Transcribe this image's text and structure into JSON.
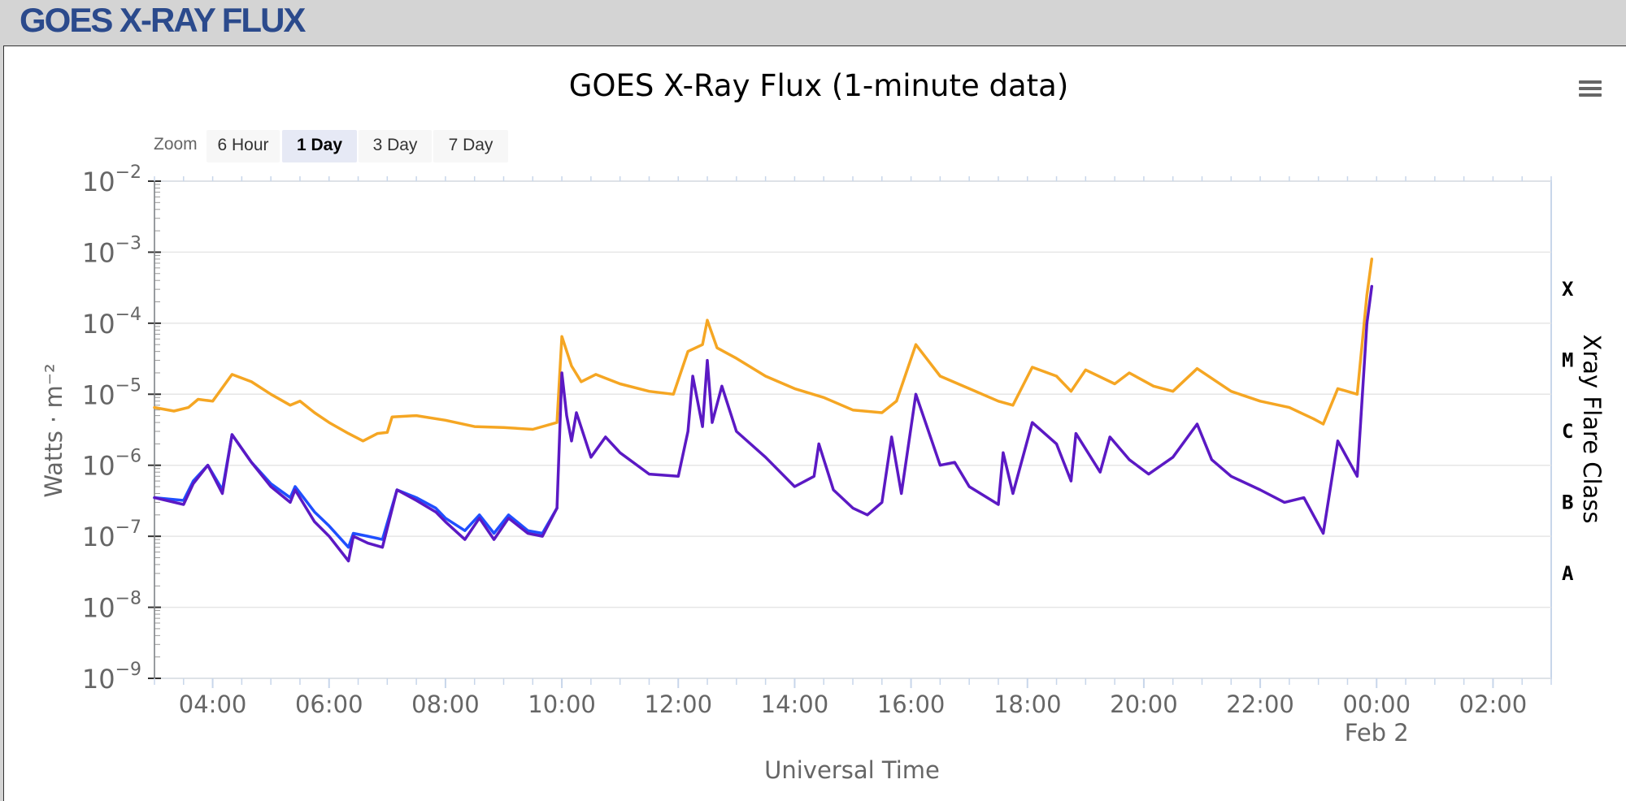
{
  "page": {
    "header_title": "GOES X-RAY FLUX"
  },
  "zoom": {
    "label": "Zoom",
    "buttons": [
      {
        "label": "6 Hour",
        "active": false
      },
      {
        "label": "1 Day",
        "active": true
      },
      {
        "label": "3 Day",
        "active": false
      },
      {
        "label": "7 Day",
        "active": false
      }
    ]
  },
  "menu": {
    "icon": "hamburger-menu-icon"
  },
  "chart_data": {
    "type": "line",
    "title": "GOES X-Ray Flux (1-minute data)",
    "xlabel": "Universal Time",
    "ylabel": "Watts · m⁻²",
    "ylabel_right": "Xray Flare Class",
    "yscale": "log",
    "ylim": [
      1e-09,
      0.01
    ],
    "xlim": [
      "2024-02-01T03:00",
      "2024-02-02T03:00"
    ],
    "y_tick_labels": [
      {
        "value": 0.01,
        "base": "10",
        "exp": "−2"
      },
      {
        "value": 0.001,
        "base": "10",
        "exp": "−3"
      },
      {
        "value": 0.0001,
        "base": "10",
        "exp": "−4"
      },
      {
        "value": 1e-05,
        "base": "10",
        "exp": "−5"
      },
      {
        "value": 1e-06,
        "base": "10",
        "exp": "−6"
      },
      {
        "value": 1e-07,
        "base": "10",
        "exp": "−7"
      },
      {
        "value": 1e-08,
        "base": "10",
        "exp": "−8"
      },
      {
        "value": 1e-09,
        "base": "10",
        "exp": "−9"
      }
    ],
    "x_tick_labels": [
      {
        "t": "2024-02-01T04:00",
        "label": "04:00"
      },
      {
        "t": "2024-02-01T06:00",
        "label": "06:00"
      },
      {
        "t": "2024-02-01T08:00",
        "label": "08:00"
      },
      {
        "t": "2024-02-01T10:00",
        "label": "10:00"
      },
      {
        "t": "2024-02-01T12:00",
        "label": "12:00"
      },
      {
        "t": "2024-02-01T14:00",
        "label": "14:00"
      },
      {
        "t": "2024-02-01T16:00",
        "label": "16:00"
      },
      {
        "t": "2024-02-01T18:00",
        "label": "18:00"
      },
      {
        "t": "2024-02-01T20:00",
        "label": "20:00"
      },
      {
        "t": "2024-02-01T22:00",
        "label": "22:00"
      },
      {
        "t": "2024-02-02T00:00",
        "label": "00:00",
        "sublabel": "Feb 2"
      },
      {
        "t": "2024-02-02T02:00",
        "label": "02:00"
      }
    ],
    "flare_classes": [
      {
        "label": "X",
        "value": 0.0003
      },
      {
        "label": "M",
        "value": 3e-05
      },
      {
        "label": "C",
        "value": 3e-06
      },
      {
        "label": "B",
        "value": 3e-07
      },
      {
        "label": "A",
        "value": 3e-08
      }
    ],
    "series": [
      {
        "color": "#f5a623",
        "points": [
          [
            "2024-02-01T03:00",
            6.5e-06
          ],
          [
            "2024-02-01T03:20",
            5.8e-06
          ],
          [
            "2024-02-01T03:35",
            6.5e-06
          ],
          [
            "2024-02-01T03:45",
            8.5e-06
          ],
          [
            "2024-02-01T04:00",
            8e-06
          ],
          [
            "2024-02-01T04:20",
            1.9e-05
          ],
          [
            "2024-02-01T04:40",
            1.5e-05
          ],
          [
            "2024-02-01T05:00",
            1e-05
          ],
          [
            "2024-02-01T05:20",
            7e-06
          ],
          [
            "2024-02-01T05:30",
            8e-06
          ],
          [
            "2024-02-01T05:45",
            5.5e-06
          ],
          [
            "2024-02-01T06:00",
            4e-06
          ],
          [
            "2024-02-01T06:20",
            2.8e-06
          ],
          [
            "2024-02-01T06:35",
            2.2e-06
          ],
          [
            "2024-02-01T06:50",
            2.8e-06
          ],
          [
            "2024-02-01T07:00",
            2.9e-06
          ],
          [
            "2024-02-01T07:05",
            4.8e-06
          ],
          [
            "2024-02-01T07:30",
            5e-06
          ],
          [
            "2024-02-01T08:00",
            4.3e-06
          ],
          [
            "2024-02-01T08:30",
            3.5e-06
          ],
          [
            "2024-02-01T09:00",
            3.4e-06
          ],
          [
            "2024-02-01T09:30",
            3.2e-06
          ],
          [
            "2024-02-01T09:55",
            4e-06
          ],
          [
            "2024-02-01T10:00",
            6.5e-05
          ],
          [
            "2024-02-01T10:10",
            2.5e-05
          ],
          [
            "2024-02-01T10:20",
            1.5e-05
          ],
          [
            "2024-02-01T10:35",
            1.9e-05
          ],
          [
            "2024-02-01T11:00",
            1.4e-05
          ],
          [
            "2024-02-01T11:30",
            1.1e-05
          ],
          [
            "2024-02-01T11:55",
            1e-05
          ],
          [
            "2024-02-01T12:10",
            4e-05
          ],
          [
            "2024-02-01T12:25",
            5e-05
          ],
          [
            "2024-02-01T12:30",
            0.00011
          ],
          [
            "2024-02-01T12:40",
            4.5e-05
          ],
          [
            "2024-02-01T13:00",
            3.2e-05
          ],
          [
            "2024-02-01T13:30",
            1.8e-05
          ],
          [
            "2024-02-01T14:00",
            1.2e-05
          ],
          [
            "2024-02-01T14:30",
            9e-06
          ],
          [
            "2024-02-01T15:00",
            6e-06
          ],
          [
            "2024-02-01T15:30",
            5.5e-06
          ],
          [
            "2024-02-01T15:45",
            8e-06
          ],
          [
            "2024-02-01T16:05",
            5e-05
          ],
          [
            "2024-02-01T16:30",
            1.8e-05
          ],
          [
            "2024-02-01T17:00",
            1.2e-05
          ],
          [
            "2024-02-01T17:30",
            8e-06
          ],
          [
            "2024-02-01T17:45",
            7e-06
          ],
          [
            "2024-02-01T18:05",
            2.4e-05
          ],
          [
            "2024-02-01T18:30",
            1.8e-05
          ],
          [
            "2024-02-01T18:45",
            1.1e-05
          ],
          [
            "2024-02-01T19:00",
            2.2e-05
          ],
          [
            "2024-02-01T19:30",
            1.4e-05
          ],
          [
            "2024-02-01T19:45",
            2e-05
          ],
          [
            "2024-02-01T20:10",
            1.3e-05
          ],
          [
            "2024-02-01T20:30",
            1.1e-05
          ],
          [
            "2024-02-01T20:55",
            2.3e-05
          ],
          [
            "2024-02-01T21:30",
            1.1e-05
          ],
          [
            "2024-02-01T22:00",
            8e-06
          ],
          [
            "2024-02-01T22:30",
            6.5e-06
          ],
          [
            "2024-02-01T22:55",
            4.5e-06
          ],
          [
            "2024-02-01T23:05",
            3.8e-06
          ],
          [
            "2024-02-01T23:20",
            1.2e-05
          ],
          [
            "2024-02-01T23:40",
            1e-05
          ],
          [
            "2024-02-01T23:50",
            0.00025
          ],
          [
            "2024-02-01T23:55",
            0.0008
          ]
        ]
      },
      {
        "color": "#1f4fff",
        "points": [
          [
            "2024-02-01T03:00",
            3.5e-07
          ],
          [
            "2024-02-01T03:30",
            3.2e-07
          ],
          [
            "2024-02-01T03:40",
            6e-07
          ],
          [
            "2024-02-01T03:55",
            1e-06
          ],
          [
            "2024-02-01T04:10",
            4.5e-07
          ],
          [
            "2024-02-01T04:20",
            2.7e-06
          ],
          [
            "2024-02-01T04:40",
            1.1e-06
          ],
          [
            "2024-02-01T05:00",
            5.5e-07
          ],
          [
            "2024-02-01T05:20",
            3.5e-07
          ],
          [
            "2024-02-01T05:25",
            5e-07
          ],
          [
            "2024-02-01T05:45",
            2.2e-07
          ],
          [
            "2024-02-01T06:00",
            1.4e-07
          ],
          [
            "2024-02-01T06:20",
            7e-08
          ],
          [
            "2024-02-01T06:25",
            1.1e-07
          ],
          [
            "2024-02-01T06:40",
            1e-07
          ],
          [
            "2024-02-01T06:55",
            9e-08
          ],
          [
            "2024-02-01T07:10",
            4.5e-07
          ],
          [
            "2024-02-01T07:30",
            3.5e-07
          ],
          [
            "2024-02-01T07:50",
            2.5e-07
          ],
          [
            "2024-02-01T08:00",
            1.8e-07
          ],
          [
            "2024-02-01T08:20",
            1.2e-07
          ],
          [
            "2024-02-01T08:35",
            2e-07
          ],
          [
            "2024-02-01T08:50",
            1.1e-07
          ],
          [
            "2024-02-01T09:05",
            2e-07
          ],
          [
            "2024-02-01T09:25",
            1.2e-07
          ],
          [
            "2024-02-01T09:40",
            1.1e-07
          ],
          [
            "2024-02-01T09:55",
            2.5e-07
          ]
        ]
      },
      {
        "color": "#5b19c4",
        "points": [
          [
            "2024-02-01T03:00",
            3.5e-07
          ],
          [
            "2024-02-01T03:30",
            2.8e-07
          ],
          [
            "2024-02-01T03:40",
            5.5e-07
          ],
          [
            "2024-02-01T03:55",
            1e-06
          ],
          [
            "2024-02-01T04:10",
            4e-07
          ],
          [
            "2024-02-01T04:20",
            2.7e-06
          ],
          [
            "2024-02-01T04:40",
            1.1e-06
          ],
          [
            "2024-02-01T05:00",
            5e-07
          ],
          [
            "2024-02-01T05:20",
            3e-07
          ],
          [
            "2024-02-01T05:25",
            4.5e-07
          ],
          [
            "2024-02-01T05:45",
            1.6e-07
          ],
          [
            "2024-02-01T06:00",
            1e-07
          ],
          [
            "2024-02-01T06:20",
            4.5e-08
          ],
          [
            "2024-02-01T06:25",
            1e-07
          ],
          [
            "2024-02-01T06:40",
            8e-08
          ],
          [
            "2024-02-01T06:55",
            7e-08
          ],
          [
            "2024-02-01T07:10",
            4.5e-07
          ],
          [
            "2024-02-01T07:30",
            3.2e-07
          ],
          [
            "2024-02-01T07:50",
            2.2e-07
          ],
          [
            "2024-02-01T08:00",
            1.6e-07
          ],
          [
            "2024-02-01T08:20",
            9e-08
          ],
          [
            "2024-02-01T08:35",
            1.8e-07
          ],
          [
            "2024-02-01T08:50",
            9e-08
          ],
          [
            "2024-02-01T09:05",
            1.8e-07
          ],
          [
            "2024-02-01T09:25",
            1.1e-07
          ],
          [
            "2024-02-01T09:40",
            1e-07
          ],
          [
            "2024-02-01T09:55",
            2.5e-07
          ],
          [
            "2024-02-01T10:00",
            2e-05
          ],
          [
            "2024-02-01T10:05",
            5e-06
          ],
          [
            "2024-02-01T10:10",
            2.2e-06
          ],
          [
            "2024-02-01T10:15",
            5.5e-06
          ],
          [
            "2024-02-01T10:30",
            1.3e-06
          ],
          [
            "2024-02-01T10:45",
            2.5e-06
          ],
          [
            "2024-02-01T11:00",
            1.5e-06
          ],
          [
            "2024-02-01T11:30",
            7.5e-07
          ],
          [
            "2024-02-01T12:00",
            7e-07
          ],
          [
            "2024-02-01T12:10",
            3e-06
          ],
          [
            "2024-02-01T12:15",
            1.8e-05
          ],
          [
            "2024-02-01T12:25",
            3.5e-06
          ],
          [
            "2024-02-01T12:30",
            3e-05
          ],
          [
            "2024-02-01T12:35",
            4e-06
          ],
          [
            "2024-02-01T12:45",
            1.3e-05
          ],
          [
            "2024-02-01T13:00",
            3e-06
          ],
          [
            "2024-02-01T13:30",
            1.3e-06
          ],
          [
            "2024-02-01T14:00",
            5e-07
          ],
          [
            "2024-02-01T14:20",
            7e-07
          ],
          [
            "2024-02-01T14:25",
            2e-06
          ],
          [
            "2024-02-01T14:40",
            4.5e-07
          ],
          [
            "2024-02-01T15:00",
            2.5e-07
          ],
          [
            "2024-02-01T15:15",
            2e-07
          ],
          [
            "2024-02-01T15:30",
            3e-07
          ],
          [
            "2024-02-01T15:40",
            2.5e-06
          ],
          [
            "2024-02-01T15:50",
            4e-07
          ],
          [
            "2024-02-01T16:05",
            1e-05
          ],
          [
            "2024-02-01T16:30",
            1e-06
          ],
          [
            "2024-02-01T16:45",
            1.1e-06
          ],
          [
            "2024-02-01T17:00",
            5e-07
          ],
          [
            "2024-02-01T17:30",
            2.8e-07
          ],
          [
            "2024-02-01T17:35",
            1.5e-06
          ],
          [
            "2024-02-01T17:45",
            4e-07
          ],
          [
            "2024-02-01T18:05",
            4e-06
          ],
          [
            "2024-02-01T18:30",
            2e-06
          ],
          [
            "2024-02-01T18:45",
            6e-07
          ],
          [
            "2024-02-01T18:50",
            2.8e-06
          ],
          [
            "2024-02-01T19:15",
            8e-07
          ],
          [
            "2024-02-01T19:25",
            2.5e-06
          ],
          [
            "2024-02-01T19:45",
            1.2e-06
          ],
          [
            "2024-02-01T20:05",
            7.5e-07
          ],
          [
            "2024-02-01T20:30",
            1.3e-06
          ],
          [
            "2024-02-01T20:55",
            3.8e-06
          ],
          [
            "2024-02-01T21:10",
            1.2e-06
          ],
          [
            "2024-02-01T21:30",
            7e-07
          ],
          [
            "2024-02-01T22:00",
            4.5e-07
          ],
          [
            "2024-02-01T22:25",
            3e-07
          ],
          [
            "2024-02-01T22:45",
            3.5e-07
          ],
          [
            "2024-02-01T23:05",
            1.1e-07
          ],
          [
            "2024-02-01T23:20",
            2.2e-06
          ],
          [
            "2024-02-01T23:40",
            7e-07
          ],
          [
            "2024-02-01T23:50",
            0.0001
          ],
          [
            "2024-02-01T23:55",
            0.00033
          ]
        ]
      }
    ]
  }
}
